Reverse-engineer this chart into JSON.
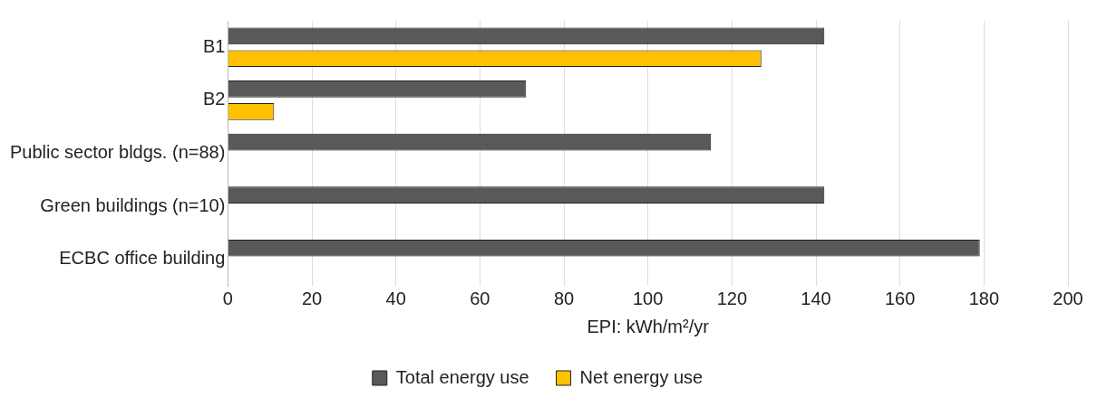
{
  "chart_data": {
    "type": "bar",
    "orientation": "horizontal",
    "categories": [
      "B1",
      "B2",
      "Public sector bldgs. (n=88)",
      "Green buildings (n=10)",
      "ECBC office building"
    ],
    "series": [
      {
        "name": "Total energy use",
        "color": "#595959",
        "values": [
          142,
          71,
          115,
          142,
          179
        ]
      },
      {
        "name": "Net energy use",
        "color": "#ffc000",
        "values": [
          127,
          11,
          null,
          null,
          null
        ]
      }
    ],
    "xlabel": "EPI: kWh/m²/yr",
    "xlim": [
      0,
      200
    ],
    "xticks": [
      0,
      20,
      40,
      60,
      80,
      100,
      120,
      140,
      160,
      180,
      200
    ],
    "grid": "x",
    "legend": "bottom"
  }
}
